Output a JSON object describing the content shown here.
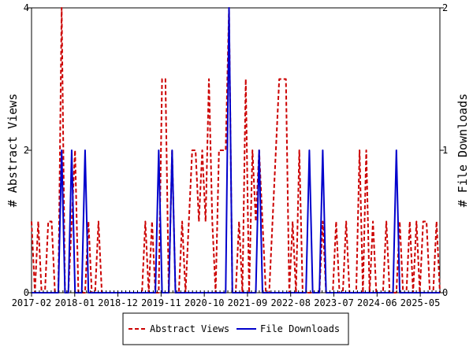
{
  "chart_data": {
    "type": "line",
    "xlabel": "",
    "ylabel_left": "# Abstract Views",
    "ylabel_right": "# File Downloads",
    "x_ticks": [
      "2017-02",
      "2018-01",
      "2018-12",
      "2019-11",
      "2020-10",
      "2021-09",
      "2022-08",
      "2023-07",
      "2024-06",
      "2025-05"
    ],
    "y_left_ticks": [
      "0",
      "2",
      "4"
    ],
    "y_right_ticks": [
      "0",
      "1",
      "2"
    ],
    "ylim_left": [
      0,
      4
    ],
    "ylim_right": [
      0,
      2
    ],
    "x_range_months": 104,
    "grid": false,
    "legend_position": "bottom",
    "series": [
      {
        "name": "Abstract Views",
        "axis": "left",
        "color": "#cc0000",
        "style": "dashed",
        "values": [
          1,
          0,
          1,
          0,
          0,
          1,
          1,
          0,
          0,
          4,
          0,
          0,
          1,
          2,
          0,
          0,
          0,
          1,
          0,
          0,
          1,
          0,
          0,
          0,
          0,
          0,
          0,
          0,
          0,
          0,
          0,
          0,
          0,
          0,
          1,
          0,
          1,
          0,
          0,
          3,
          3,
          0,
          2,
          0,
          0,
          1,
          0,
          1,
          2,
          2,
          1,
          2,
          1,
          3,
          1,
          0,
          2,
          2,
          2,
          4,
          0,
          0,
          1,
          0,
          3,
          0,
          2,
          1,
          2,
          1,
          0,
          0,
          1,
          2,
          3,
          3,
          3,
          0,
          1,
          0,
          2,
          0,
          0,
          0,
          0,
          0,
          0,
          1,
          0,
          0,
          0,
          1,
          0,
          0,
          1,
          0,
          0,
          0,
          2,
          0,
          2,
          0,
          1,
          0,
          0,
          0,
          1,
          0,
          0,
          0,
          1,
          0,
          0,
          1,
          0,
          1,
          0,
          1,
          1,
          0,
          0,
          1,
          0
        ]
      },
      {
        "name": "File Downloads",
        "axis": "right",
        "color": "#0000cc",
        "style": "solid",
        "values": [
          0,
          0,
          0,
          0,
          0,
          0,
          0,
          0,
          0,
          1,
          0,
          0,
          1,
          0,
          0,
          0,
          1,
          0,
          0,
          0,
          0,
          0,
          0,
          0,
          0,
          0,
          0,
          0,
          0,
          0,
          0,
          0,
          0,
          0,
          0,
          0,
          0,
          0,
          1,
          0,
          0,
          0,
          1,
          0,
          0,
          0,
          0,
          0,
          0,
          0,
          0,
          0,
          0,
          0,
          0,
          0,
          0,
          0,
          0,
          2,
          0,
          0,
          0,
          0,
          0,
          0,
          0,
          0,
          1,
          0,
          0,
          0,
          0,
          0,
          0,
          0,
          0,
          0,
          0,
          0,
          0,
          0,
          0,
          1,
          0,
          0,
          0,
          1,
          0,
          0,
          0,
          0,
          0,
          0,
          0,
          0,
          0,
          0,
          0,
          0,
          0,
          0,
          0,
          0,
          0,
          0,
          0,
          0,
          0,
          1,
          0,
          0,
          0,
          0,
          0,
          0,
          0,
          0,
          0,
          0,
          0,
          0,
          0
        ]
      }
    ]
  },
  "legend": {
    "abstract_label": "Abstract Views",
    "downloads_label": "File Downloads"
  },
  "colors": {
    "abstract": "#cc0000",
    "downloads": "#0000cc",
    "axis": "#000000"
  }
}
